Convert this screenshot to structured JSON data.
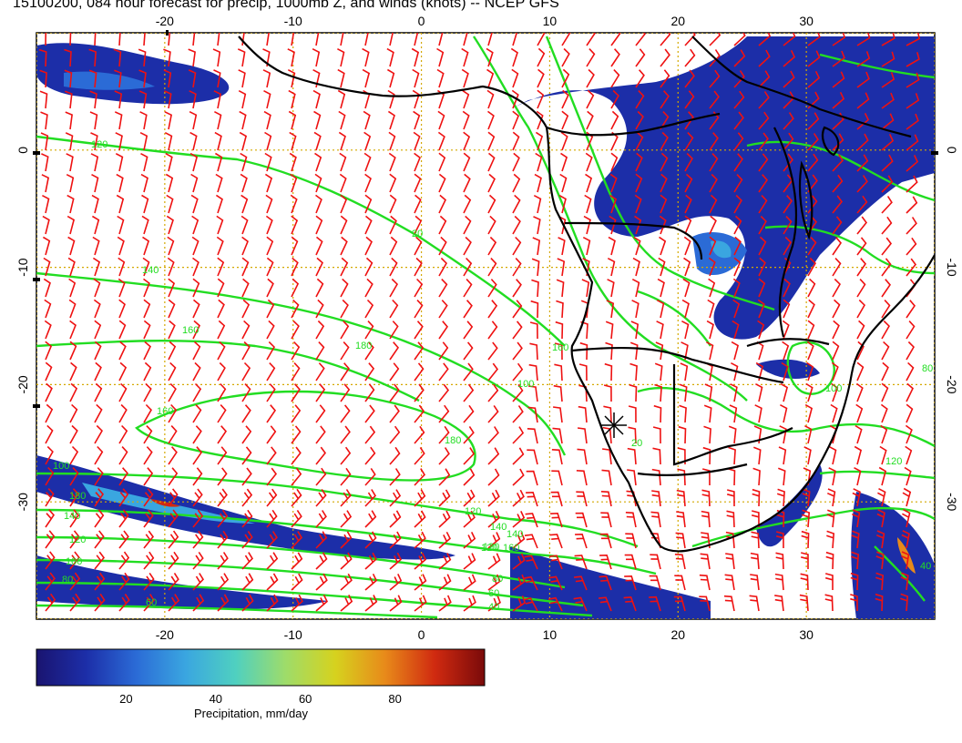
{
  "title": "15100200, 084 hour forecast for precip, 1000mb Z, and winds (knots) -- NCEP GFS",
  "colors": {
    "contour": "#22dd22",
    "barb": "#ee1111",
    "coast": "#000000",
    "gridline": "#d4a800",
    "precip_scale": [
      "#1a1470",
      "#1c2ea8",
      "#2b6bd6",
      "#3aa6e0",
      "#4fd0c0",
      "#9edc6a",
      "#d6d21e",
      "#e88a1a",
      "#d02a10",
      "#7a0a0a"
    ]
  },
  "map": {
    "lon_range": [
      -30,
      40
    ],
    "lat_range": [
      -40,
      10
    ],
    "lon_ticks_top": [
      "-20",
      "-10",
      "0",
      "10",
      "20",
      "30"
    ],
    "lon_ticks_bottom": [
      "-20",
      "-10",
      "0",
      "10",
      "20",
      "30"
    ],
    "lat_ticks_left": [
      "0",
      "-10",
      "-20",
      "-30"
    ],
    "lat_ticks_right": [
      "0",
      "-10",
      "-20",
      "-30"
    ],
    "contour_labels": [
      "120",
      "20",
      "140",
      "160",
      "180",
      "160",
      "180",
      "140",
      "120",
      "160",
      "100",
      "120",
      "140",
      "160",
      "120",
      "80",
      "60",
      "40",
      "180",
      "140",
      "120",
      "100",
      "80",
      "60",
      "120",
      "20",
      "80",
      "100",
      "100",
      "40"
    ],
    "marker": "city-star"
  },
  "colorbar": {
    "ticks": [
      "20",
      "40",
      "60",
      "80"
    ],
    "range": [
      0,
      100
    ],
    "label": "Precipitation, mm/day"
  }
}
